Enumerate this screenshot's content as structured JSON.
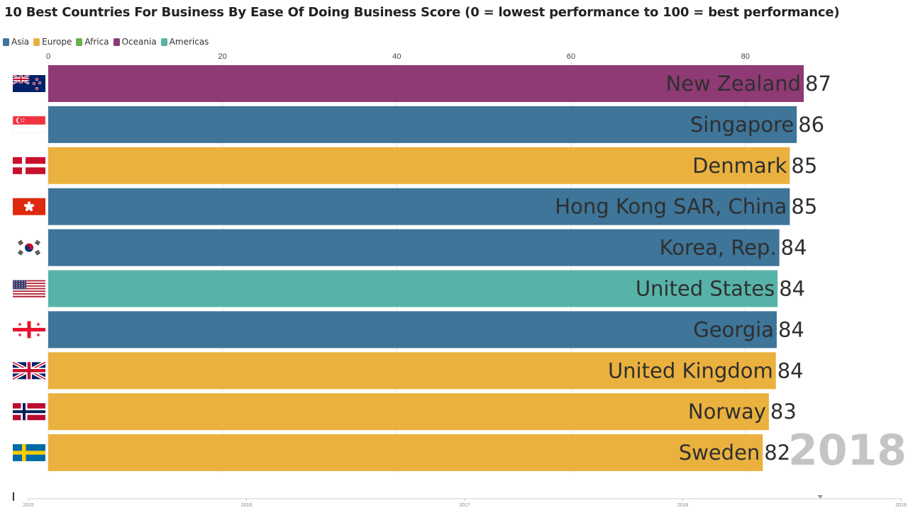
{
  "chart_data": {
    "type": "bar",
    "title": "10 Best Countries For Business By Ease Of Doing Business Score (0 = lowest performance to 100 = best performance)",
    "orientation": "horizontal",
    "xlim": [
      0,
      95
    ],
    "x_ticks": [
      0,
      20,
      40,
      60,
      80
    ],
    "grid": true,
    "legend_position": "top-left",
    "legend": [
      {
        "name": "Asia",
        "color": "#3e7599"
      },
      {
        "name": "Europe",
        "color": "#eab13f"
      },
      {
        "name": "Africa",
        "color": "#6ab04c"
      },
      {
        "name": "Oceania",
        "color": "#8f3a75"
      },
      {
        "name": "Americas",
        "color": "#57b3a8"
      }
    ],
    "bars": [
      {
        "name": "New Zealand",
        "value": 87,
        "label": "87",
        "region": "Oceania",
        "flag": "new-zealand-flag",
        "value_exact": 86.7
      },
      {
        "name": "Singapore",
        "value": 86,
        "label": "86",
        "region": "Asia",
        "flag": "singapore-flag",
        "value_exact": 85.9
      },
      {
        "name": "Denmark",
        "value": 85,
        "label": "85",
        "region": "Europe",
        "flag": "denmark-flag",
        "value_exact": 85.1
      },
      {
        "name": "Hong Kong SAR, China",
        "value": 85,
        "label": "85",
        "region": "Asia",
        "flag": "hong-kong-flag",
        "value_exact": 85.1
      },
      {
        "name": "Korea, Rep.",
        "value": 84,
        "label": "84",
        "region": "Asia",
        "flag": "south-korea-flag",
        "value_exact": 83.9
      },
      {
        "name": "United States",
        "value": 84,
        "label": "84",
        "region": "Americas",
        "flag": "united-states-flag",
        "value_exact": 83.7
      },
      {
        "name": "Georgia",
        "value": 84,
        "label": "84",
        "region": "Asia",
        "flag": "georgia-flag",
        "value_exact": 83.6
      },
      {
        "name": "United Kingdom",
        "value": 84,
        "label": "84",
        "region": "Europe",
        "flag": "united-kingdom-flag",
        "value_exact": 83.5
      },
      {
        "name": "Norway",
        "value": 83,
        "label": "83",
        "region": "Europe",
        "flag": "norway-flag",
        "value_exact": 82.7
      },
      {
        "name": "Sweden",
        "value": 82,
        "label": "82",
        "region": "Europe",
        "flag": "sweden-flag",
        "value_exact": 82.0
      }
    ],
    "year": "2018",
    "timeline": {
      "labels": [
        "2015",
        "2016",
        "2017",
        "2018",
        "2019"
      ],
      "current": 2018.63
    }
  }
}
